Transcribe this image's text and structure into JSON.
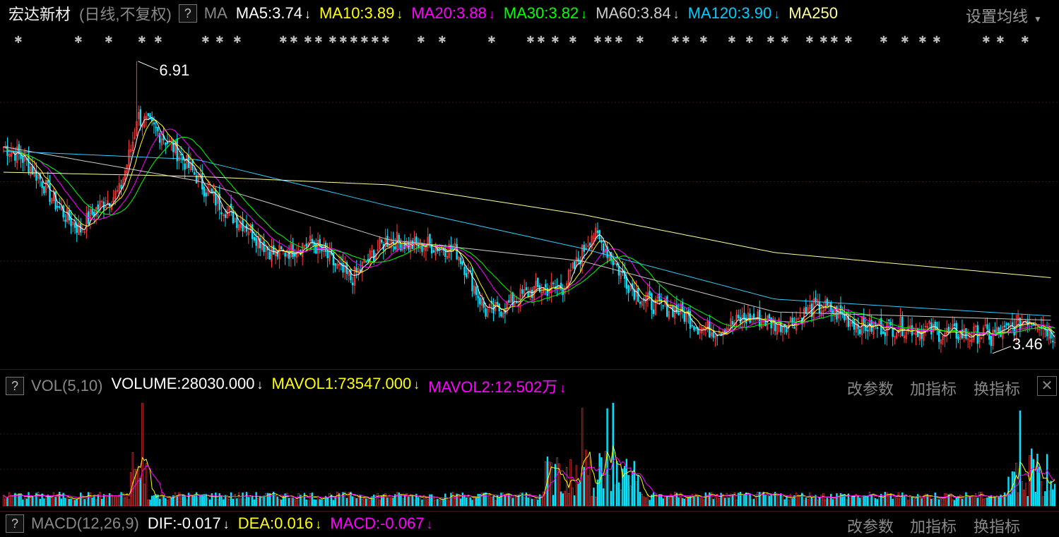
{
  "stock": {
    "name": "宏达新材",
    "mode": "(日线,不复权)",
    "help": "?",
    "ma_label": "MA",
    "ma_items": [
      {
        "text": "MA5:3.74",
        "arrow": "↓",
        "color": "#ffffff"
      },
      {
        "text": "MA10:3.89",
        "arrow": "↓",
        "color": "#ffff00"
      },
      {
        "text": "MA20:3.88",
        "arrow": "↓",
        "color": "#ff00ff"
      },
      {
        "text": "MA30:3.82",
        "arrow": "↓",
        "color": "#00ff00"
      },
      {
        "text": "MA60:3.84",
        "arrow": "↓",
        "color": "#cccccc"
      },
      {
        "text": "MA120:3.90",
        "arrow": "↓",
        "color": "#00ccff"
      },
      {
        "text": "MA250",
        "arrow": "",
        "color": "#ffff99"
      }
    ],
    "settings": "设置均线",
    "high_label": "6.91",
    "low_label": "3.46"
  },
  "vol": {
    "help": "?",
    "title": "VOL(5,10)",
    "items": [
      {
        "text": "VOLUME:28030.000",
        "arrow": "↓",
        "color": "#ffffff"
      },
      {
        "text": "MAVOL1:73547.000",
        "arrow": "↓",
        "color": "#ffff00"
      },
      {
        "text": "MAVOL2:12.502万",
        "arrow": "↓",
        "color": "#ff00ff"
      }
    ],
    "buttons": [
      "改参数",
      "加指标",
      "换指标"
    ],
    "close": "✕"
  },
  "macd": {
    "help": "?",
    "title": "MACD(12,26,9)",
    "items": [
      {
        "text": "DIF:-0.017",
        "arrow": "↓",
        "color": "#ffffff"
      },
      {
        "text": "DEA:0.016",
        "arrow": "↓",
        "color": "#ffff00"
      },
      {
        "text": "MACD:-0.067",
        "arrow": "↓",
        "color": "#ff00ff"
      }
    ],
    "buttons": [
      "改参数",
      "加指标",
      "换指标"
    ]
  },
  "chart_data": {
    "type": "candlestick",
    "price_range": [
      3.46,
      6.91
    ],
    "series_summary": {
      "MA5": 3.74,
      "MA10": 3.89,
      "MA20": 3.88,
      "MA30": 3.82,
      "MA60": 3.84,
      "MA120": 3.9
    },
    "price_key_points": [
      {
        "i": 0,
        "v": 5.9
      },
      {
        "i": 20,
        "v": 5.5
      },
      {
        "i": 40,
        "v": 4.9
      },
      {
        "i": 60,
        "v": 5.4
      },
      {
        "i": 70,
        "v": 6.3
      },
      {
        "i": 85,
        "v": 5.9
      },
      {
        "i": 100,
        "v": 5.6
      },
      {
        "i": 120,
        "v": 5.0
      },
      {
        "i": 140,
        "v": 4.7
      },
      {
        "i": 160,
        "v": 4.7
      },
      {
        "i": 180,
        "v": 4.4
      },
      {
        "i": 200,
        "v": 4.75
      },
      {
        "i": 220,
        "v": 4.8
      },
      {
        "i": 235,
        "v": 4.6
      },
      {
        "i": 250,
        "v": 4.0
      },
      {
        "i": 270,
        "v": 4.1
      },
      {
        "i": 290,
        "v": 4.3
      },
      {
        "i": 305,
        "v": 4.85
      },
      {
        "i": 320,
        "v": 4.4
      },
      {
        "i": 340,
        "v": 4.0
      },
      {
        "i": 360,
        "v": 3.8
      },
      {
        "i": 380,
        "v": 3.8
      },
      {
        "i": 400,
        "v": 3.85
      },
      {
        "i": 420,
        "v": 3.95
      },
      {
        "i": 440,
        "v": 3.9
      },
      {
        "i": 460,
        "v": 3.7
      },
      {
        "i": 480,
        "v": 3.8
      },
      {
        "i": 500,
        "v": 3.6
      },
      {
        "i": 515,
        "v": 3.75
      },
      {
        "i": 530,
        "v": 3.85
      },
      {
        "i": 545,
        "v": 3.65
      }
    ],
    "ma_points": {
      "MA60": [
        {
          "i": 0,
          "v": 5.9
        },
        {
          "i": 100,
          "v": 5.5
        },
        {
          "i": 200,
          "v": 4.8
        },
        {
          "i": 300,
          "v": 4.55
        },
        {
          "i": 400,
          "v": 3.95
        },
        {
          "i": 545,
          "v": 3.85
        }
      ],
      "MA120": [
        {
          "i": 0,
          "v": 5.85
        },
        {
          "i": 100,
          "v": 5.75
        },
        {
          "i": 200,
          "v": 5.2
        },
        {
          "i": 300,
          "v": 4.7
        },
        {
          "i": 400,
          "v": 4.1
        },
        {
          "i": 545,
          "v": 3.9
        }
      ],
      "MA250": [
        {
          "i": 0,
          "v": 5.6
        },
        {
          "i": 100,
          "v": 5.55
        },
        {
          "i": 200,
          "v": 5.45
        },
        {
          "i": 300,
          "v": 5.1
        },
        {
          "i": 400,
          "v": 4.65
        },
        {
          "i": 545,
          "v": 4.35
        }
      ]
    }
  }
}
